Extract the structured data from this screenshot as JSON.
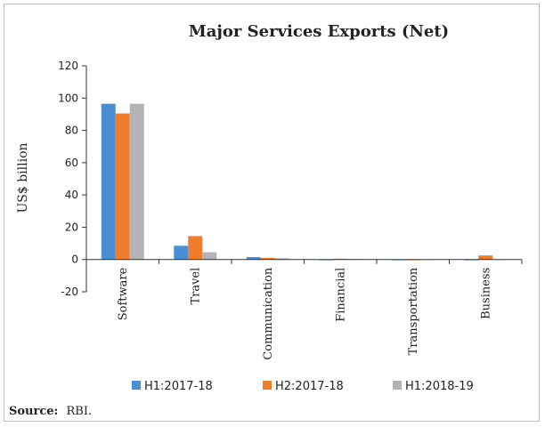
{
  "chart_data": {
    "type": "bar",
    "title": "Major Services Exports (Net)",
    "ylabel": "US$ billion",
    "xlabel": "",
    "ylim": [
      -20,
      120
    ],
    "yticks": [
      -20,
      0,
      20,
      40,
      60,
      80,
      100,
      120
    ],
    "categories": [
      "Software",
      "Travel",
      "Communication",
      "Financial",
      "Transportation",
      "Business"
    ],
    "series": [
      {
        "name": "H1:2017-18",
        "color": "#4a8fd4",
        "values": [
          96.5,
          8.5,
          1.5,
          -0.5,
          -0.5,
          -0.5
        ]
      },
      {
        "name": "H2:2017-18",
        "color": "#f07d2c",
        "values": [
          90.5,
          14.5,
          1.0,
          0.5,
          -0.5,
          2.5
        ]
      },
      {
        "name": "H1:2018-19",
        "color": "#b3b3b3",
        "values": [
          96.5,
          4.5,
          0.8,
          0.3,
          -0.3,
          -0.3
        ]
      }
    ],
    "legend_position": "bottom",
    "grid": false
  },
  "source": {
    "label": "Source:",
    "text": "RBI."
  }
}
